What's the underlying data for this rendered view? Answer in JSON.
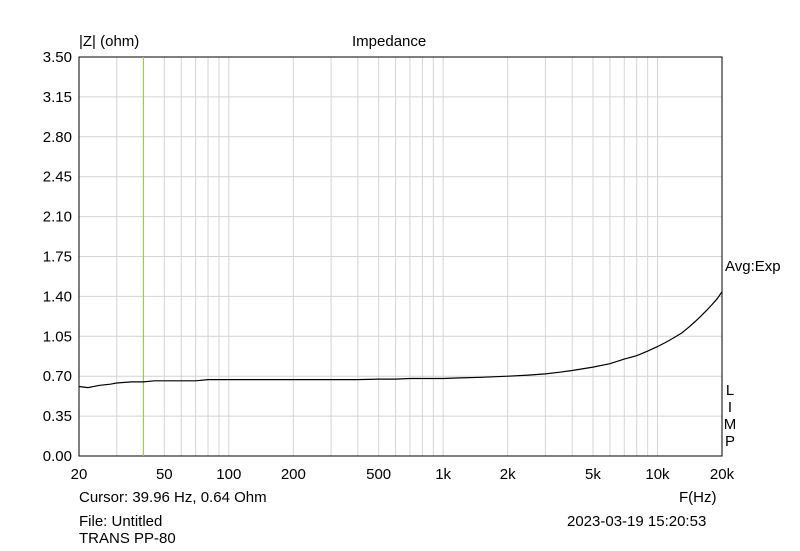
{
  "chart_data": {
    "type": "line",
    "title": "Impedance",
    "ylabel": "|Z| (ohm)",
    "xlabel": "F(Hz)",
    "xscale": "log",
    "xlim": [
      20,
      20000
    ],
    "ylim": [
      0,
      3.5
    ],
    "grid": true,
    "yticks": [
      0.0,
      0.35,
      0.7,
      1.05,
      1.4,
      1.75,
      2.1,
      2.45,
      2.8,
      3.15,
      3.5
    ],
    "ytick_labels": [
      "0.00",
      "0.35",
      "0.70",
      "1.05",
      "1.40",
      "1.75",
      "2.10",
      "2.45",
      "2.80",
      "3.15",
      "3.50"
    ],
    "xticks": [
      20,
      50,
      100,
      200,
      500,
      1000,
      2000,
      5000,
      10000,
      20000
    ],
    "xtick_labels": [
      "20",
      "50",
      "100",
      "200",
      "500",
      "1k",
      "2k",
      "5k",
      "10k",
      "20k"
    ],
    "cursor": {
      "x": 39.96,
      "y": 0.64,
      "color": "#a8c060"
    },
    "series": [
      {
        "color": "#000000",
        "x": [
          20,
          22,
          25,
          28,
          30,
          35,
          40,
          45,
          50,
          60,
          70,
          80,
          100,
          120,
          150,
          200,
          250,
          300,
          400,
          500,
          600,
          700,
          800,
          1000,
          1200,
          1500,
          2000,
          2500,
          3000,
          3500,
          4000,
          5000,
          6000,
          7000,
          8000,
          9000,
          10000,
          11000,
          12000,
          13000,
          14000,
          15000,
          16000,
          17000,
          18000,
          19000,
          20000
        ],
        "y": [
          0.61,
          0.6,
          0.62,
          0.63,
          0.64,
          0.65,
          0.65,
          0.66,
          0.66,
          0.66,
          0.66,
          0.67,
          0.67,
          0.67,
          0.67,
          0.67,
          0.67,
          0.67,
          0.67,
          0.675,
          0.675,
          0.68,
          0.68,
          0.68,
          0.685,
          0.69,
          0.7,
          0.71,
          0.72,
          0.735,
          0.75,
          0.78,
          0.81,
          0.85,
          0.88,
          0.92,
          0.96,
          1.0,
          1.04,
          1.08,
          1.13,
          1.18,
          1.23,
          1.28,
          1.33,
          1.38,
          1.44
        ]
      }
    ],
    "annotations": {
      "avg_label": "Avg:Exp",
      "side_letters": [
        "L",
        "I",
        "M",
        "P"
      ],
      "cursor_text": "Cursor: 39.96 Hz, 0.64 Ohm",
      "file_text": "File: Untitled",
      "device_text": "TRANS PP-80",
      "timestamp": "2023-03-19 15:20:53"
    }
  }
}
